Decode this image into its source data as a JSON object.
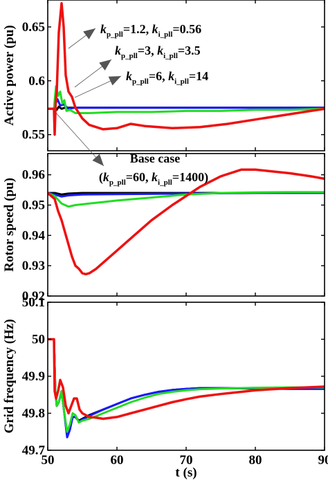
{
  "chart_data": [
    {
      "type": "line",
      "panel": "top",
      "ylabel": "Active power (pu)",
      "xlim": [
        50,
        90
      ],
      "ylim": [
        0.535,
        0.675
      ],
      "yticks": [
        0.55,
        0.6,
        0.65
      ],
      "ytick_labels": [
        "0.55",
        "0.6",
        "0.65"
      ],
      "xticks": [
        50,
        60,
        70,
        80,
        90
      ],
      "grid": false,
      "annotations": [
        {
          "text_parts": [
            {
              "t": "k",
              "italic": true
            },
            {
              "t": "p_pll",
              "sub": true
            },
            {
              "t": "=1.2, "
            },
            {
              "t": "k",
              "italic": true
            },
            {
              "t": "i_pll",
              "sub": true
            },
            {
              "t": "=0.56"
            }
          ],
          "series": "kp_pll=1.2, ki_pll=0.56"
        },
        {
          "text_parts": [
            {
              "t": "k",
              "italic": true
            },
            {
              "t": "p_pll",
              "sub": true
            },
            {
              "t": "=3, "
            },
            {
              "t": "k",
              "italic": true
            },
            {
              "t": "i_pll",
              "sub": true
            },
            {
              "t": "=3.5"
            }
          ],
          "series": "kp_pll=3, ki_pll=3.5"
        },
        {
          "text_parts": [
            {
              "t": "k",
              "italic": true
            },
            {
              "t": "p_pll",
              "sub": true
            },
            {
              "t": "=6, "
            },
            {
              "t": "k",
              "italic": true
            },
            {
              "t": "i_pll",
              "sub": true
            },
            {
              "t": "=14"
            }
          ],
          "series": "kp_pll=6, ki_pll=14"
        }
      ],
      "series": [
        {
          "name": "Base case (kp_pll=60, ki_pll=1400)",
          "color": "#000000",
          "width": 3,
          "x": [
            50,
            50.9,
            51.0,
            51.1,
            51.3,
            51.6,
            52.0,
            52.5,
            53.5,
            60,
            70,
            80,
            90
          ],
          "y": [
            0.574,
            0.574,
            0.578,
            0.575,
            0.573,
            0.576,
            0.574,
            0.575,
            0.575,
            0.575,
            0.575,
            0.575,
            0.575
          ]
        },
        {
          "name": "kp_pll=6, ki_pll=14",
          "color": "#1a1aff",
          "width": 3,
          "x": [
            50,
            50.9,
            51.1,
            51.4,
            51.8,
            52.3,
            53.0,
            54,
            60,
            70,
            80,
            90
          ],
          "y": [
            0.574,
            0.574,
            0.578,
            0.583,
            0.577,
            0.578,
            0.574,
            0.575,
            0.575,
            0.575,
            0.575,
            0.575
          ]
        },
        {
          "name": "kp_pll=3, ki_pll=3.5",
          "color": "#22dd22",
          "width": 3,
          "x": [
            50,
            50.9,
            51.0,
            51.2,
            51.5,
            51.8,
            52.1,
            52.4,
            52.7,
            53.2,
            54,
            56,
            60,
            65,
            70,
            75,
            80,
            85,
            90
          ],
          "y": [
            0.574,
            0.574,
            0.582,
            0.595,
            0.586,
            0.59,
            0.579,
            0.582,
            0.572,
            0.573,
            0.57,
            0.57,
            0.571,
            0.571,
            0.572,
            0.572,
            0.573,
            0.573,
            0.574
          ]
        },
        {
          "name": "kp_pll=1.2, ki_pll=0.56",
          "color": "#ee1111",
          "width": 3.5,
          "x": [
            50,
            50.9,
            51.0,
            51.15,
            51.3,
            51.6,
            52.0,
            52.3,
            52.6,
            53.0,
            53.5,
            54,
            55,
            56,
            58,
            60,
            62,
            64,
            68,
            72,
            76,
            80,
            84,
            88,
            90
          ],
          "y": [
            0.574,
            0.574,
            0.55,
            0.58,
            0.59,
            0.645,
            0.672,
            0.65,
            0.605,
            0.59,
            0.585,
            0.575,
            0.565,
            0.559,
            0.555,
            0.556,
            0.56,
            0.558,
            0.556,
            0.557,
            0.56,
            0.564,
            0.568,
            0.572,
            0.574
          ]
        }
      ]
    },
    {
      "type": "line",
      "panel": "middle",
      "ylabel": "Rotor speed (pu)",
      "xlim": [
        50,
        90
      ],
      "ylim": [
        0.92,
        0.967
      ],
      "yticks": [
        0.92,
        0.93,
        0.94,
        0.95,
        0.96
      ],
      "ytick_labels": [
        "0.92",
        "0.93",
        "0.94",
        "0.95",
        "0.96"
      ],
      "xticks": [
        50,
        60,
        70,
        80,
        90
      ],
      "grid": false,
      "annotations": [
        {
          "text_parts": [
            {
              "t": "Base case"
            }
          ],
          "series": "Base case (kp_pll=60, ki_pll=1400)"
        },
        {
          "text_parts": [
            {
              "t": "("
            },
            {
              "t": "k",
              "italic": true
            },
            {
              "t": "p_pll",
              "sub": true
            },
            {
              "t": "=60, "
            },
            {
              "t": "k",
              "italic": true
            },
            {
              "t": "i_pll",
              "sub": true
            },
            {
              "t": "=1400)"
            }
          ],
          "series": "Base case (kp_pll=60, ki_pll=1400)"
        }
      ],
      "series": [
        {
          "name": "Base case (kp_pll=60, ki_pll=1400)",
          "color": "#000000",
          "width": 3,
          "x": [
            50,
            51,
            52,
            53,
            55,
            60,
            70,
            80,
            90
          ],
          "y": [
            0.954,
            0.954,
            0.9535,
            0.9538,
            0.954,
            0.954,
            0.954,
            0.954,
            0.954
          ]
        },
        {
          "name": "kp_pll=6, ki_pll=14",
          "color": "#1a1aff",
          "width": 3,
          "x": [
            50,
            51,
            52,
            53,
            55,
            60,
            70,
            80,
            90
          ],
          "y": [
            0.954,
            0.9535,
            0.9528,
            0.9532,
            0.9535,
            0.9536,
            0.9538,
            0.954,
            0.954
          ]
        },
        {
          "name": "kp_pll=3, ki_pll=3.5",
          "color": "#22dd22",
          "width": 3,
          "x": [
            50,
            51,
            52,
            53,
            54,
            56,
            58,
            60,
            65,
            70,
            75,
            80,
            85,
            90
          ],
          "y": [
            0.954,
            0.953,
            0.9505,
            0.9495,
            0.95,
            0.9505,
            0.951,
            0.9515,
            0.9525,
            0.9535,
            0.954,
            0.9542,
            0.9543,
            0.9543
          ]
        },
        {
          "name": "kp_pll=1.2, ki_pll=0.56",
          "color": "#ee1111",
          "width": 3.5,
          "x": [
            50,
            51.0,
            51.5,
            52,
            52.5,
            53,
            53.5,
            54,
            54.5,
            55,
            55.5,
            56,
            57,
            58,
            60,
            62,
            65,
            68,
            70,
            72,
            75,
            78,
            80,
            82,
            85,
            88,
            90
          ],
          "y": [
            0.954,
            0.952,
            0.948,
            0.945,
            0.941,
            0.937,
            0.933,
            0.93,
            0.929,
            0.9275,
            0.9272,
            0.9275,
            0.929,
            0.931,
            0.935,
            0.939,
            0.945,
            0.95,
            0.953,
            0.956,
            0.9595,
            0.9617,
            0.9617,
            0.9612,
            0.9605,
            0.9595,
            0.9587
          ]
        }
      ]
    },
    {
      "type": "line",
      "panel": "bottom",
      "ylabel": "Grid frequency (Hz)",
      "xlabel": "t (s)",
      "xlim": [
        50,
        90
      ],
      "ylim": [
        49.7,
        50.1
      ],
      "yticks": [
        49.7,
        49.8,
        49.9,
        50,
        50.1
      ],
      "ytick_labels": [
        "49.7",
        "49.8",
        "49.9",
        "50",
        "50.1"
      ],
      "xticks": [
        50,
        60,
        70,
        80,
        90
      ],
      "xtick_labels": [
        "50",
        "60",
        "70",
        "80",
        "90"
      ],
      "grid": false,
      "series": [
        {
          "name": "Base case (kp_pll=60, ki_pll=1400)",
          "color": "#000000",
          "width": 3,
          "x": [
            50,
            50.9,
            51.1,
            51.3,
            51.6,
            52.0,
            52.4,
            52.8,
            53.2,
            53.6,
            54.0,
            54.5,
            55,
            56,
            58,
            60,
            62,
            64,
            66,
            68,
            70,
            72,
            75,
            80,
            85,
            90
          ],
          "y": [
            50.0,
            50.0,
            49.86,
            49.82,
            49.83,
            49.86,
            49.8,
            49.74,
            49.76,
            49.79,
            49.79,
            49.78,
            49.785,
            49.795,
            49.81,
            49.825,
            49.84,
            49.85,
            49.858,
            49.863,
            49.866,
            49.868,
            49.868,
            49.867,
            49.866,
            49.866
          ]
        },
        {
          "name": "kp_pll=6, ki_pll=14",
          "color": "#1a1aff",
          "width": 3,
          "x": [
            50,
            50.9,
            51.1,
            51.3,
            51.6,
            52.0,
            52.4,
            52.8,
            53.2,
            53.6,
            54.0,
            54.5,
            55,
            56,
            58,
            60,
            62,
            64,
            66,
            68,
            70,
            72,
            75,
            80,
            85,
            90
          ],
          "y": [
            50.0,
            50.0,
            49.86,
            49.82,
            49.83,
            49.86,
            49.8,
            49.735,
            49.755,
            49.79,
            49.79,
            49.778,
            49.783,
            49.793,
            49.81,
            49.825,
            49.84,
            49.85,
            49.858,
            49.863,
            49.866,
            49.868,
            49.868,
            49.867,
            49.866,
            49.866
          ]
        },
        {
          "name": "kp_pll=3, ki_pll=3.5",
          "color": "#22dd22",
          "width": 3,
          "x": [
            50,
            50.9,
            51.1,
            51.3,
            51.6,
            52.0,
            52.4,
            52.8,
            53.2,
            53.6,
            54.0,
            54.5,
            55,
            56,
            58,
            60,
            62,
            64,
            66,
            68,
            70,
            72,
            75,
            80,
            85,
            90
          ],
          "y": [
            50.0,
            50.0,
            49.86,
            49.82,
            49.83,
            49.86,
            49.8,
            49.75,
            49.77,
            49.8,
            49.795,
            49.775,
            49.78,
            49.785,
            49.8,
            49.815,
            49.83,
            49.842,
            49.852,
            49.858,
            49.862,
            49.865,
            49.867,
            49.869,
            49.87,
            49.87
          ]
        },
        {
          "name": "kp_pll=1.2, ki_pll=0.56",
          "color": "#ee1111",
          "width": 3.5,
          "x": [
            50,
            50.9,
            51.0,
            51.2,
            51.5,
            51.8,
            52.2,
            52.6,
            53.0,
            53.4,
            53.8,
            54.2,
            54.6,
            55,
            56,
            57,
            58,
            60,
            62,
            64,
            66,
            68,
            70,
            72,
            75,
            78,
            80,
            85,
            90
          ],
          "y": [
            50.0,
            50.0,
            49.86,
            49.84,
            49.86,
            49.89,
            49.87,
            49.82,
            49.8,
            49.82,
            49.84,
            49.84,
            49.81,
            49.8,
            49.79,
            49.788,
            49.785,
            49.79,
            49.8,
            49.81,
            49.82,
            49.83,
            49.838,
            49.845,
            49.852,
            49.858,
            49.862,
            49.868,
            49.872
          ]
        }
      ]
    }
  ]
}
